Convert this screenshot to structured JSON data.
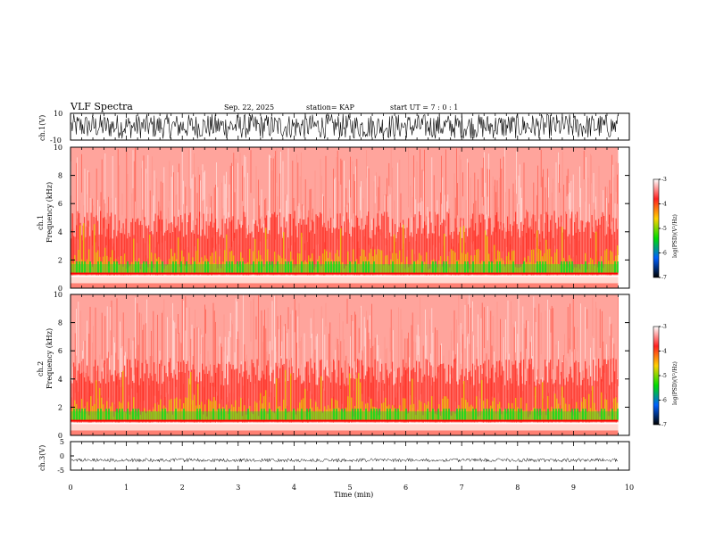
{
  "header": {
    "title": "VLF Spectra",
    "date": "Sep. 22, 2025",
    "station": "station= KAP",
    "start_ut": "start  UT =   7 : 0  : 1"
  },
  "chart_data": [
    {
      "type": "line",
      "id": "ch1-waveform",
      "ylabel": "ch.1(V)",
      "ylim": [
        -10,
        10
      ],
      "ytick_labels": [
        "10",
        "-10"
      ],
      "xlim": [
        0,
        10
      ],
      "description_series": [
        {
          "name": "ch.1 voltage",
          "x_range": [
            0,
            9.8
          ],
          "approx_min": -9,
          "approx_max": 9.5
        }
      ]
    },
    {
      "type": "heatmap",
      "id": "ch1-spectrogram",
      "ylabel_line1": "ch.1",
      "ylabel_line2": "Frequency  (kHz)",
      "ylim": [
        0,
        10
      ],
      "ytick_labels": [
        "0",
        "2",
        "4",
        "6",
        "8",
        "10"
      ],
      "ytick_values": [
        0,
        2,
        4,
        6,
        8,
        10
      ],
      "xlim": [
        0,
        10
      ],
      "data_x_range": [
        0,
        9.8
      ],
      "colorbar": {
        "label": "log(PSD)(V²/Hz)",
        "range": [
          -7,
          -3
        ],
        "tick_labels": [
          "-3",
          "-4",
          "-5",
          "-6",
          "-7"
        ],
        "tick_values": [
          -3,
          -4,
          -5,
          -6,
          -7
        ]
      }
    },
    {
      "type": "heatmap",
      "id": "ch2-spectrogram",
      "ylabel_line1": "ch.2",
      "ylabel_line2": "Frequency  (kHz)",
      "ylim": [
        0,
        10
      ],
      "ytick_labels": [
        "0",
        "2",
        "4",
        "6",
        "8",
        "10"
      ],
      "ytick_values": [
        0,
        2,
        4,
        6,
        8,
        10
      ],
      "xlim": [
        0,
        10
      ],
      "data_x_range": [
        0,
        9.8
      ],
      "colorbar": {
        "label": "log(PSD)(V²/Hz)",
        "range": [
          -7,
          -3
        ],
        "tick_labels": [
          "-3",
          "-4",
          "-5",
          "-6",
          "-7"
        ],
        "tick_values": [
          -3,
          -4,
          -5,
          -6,
          -7
        ]
      }
    },
    {
      "type": "line",
      "id": "ch3-waveform",
      "ylabel": "ch.3(V)",
      "ylim": [
        -5,
        5
      ],
      "ytick_labels": [
        "5",
        "0",
        "-5"
      ],
      "ytick_values": [
        5,
        0,
        -5
      ],
      "xlim": [
        0,
        10
      ],
      "xlabel": "Time  (min)",
      "xtick_labels": [
        "0",
        "1",
        "2",
        "3",
        "4",
        "5",
        "6",
        "7",
        "8",
        "9",
        "10"
      ],
      "xtick_values": [
        0,
        1,
        2,
        3,
        4,
        5,
        6,
        7,
        8,
        9,
        10
      ],
      "description_series": [
        {
          "name": "ch.3 voltage",
          "x_range": [
            0,
            9.8
          ],
          "approx_value": -1.5
        }
      ]
    }
  ],
  "colors": {
    "axis": "#000000",
    "spectrogram_bg": "#ff3030",
    "low_band": "#22dd22",
    "mid_band": "#e8d000"
  }
}
